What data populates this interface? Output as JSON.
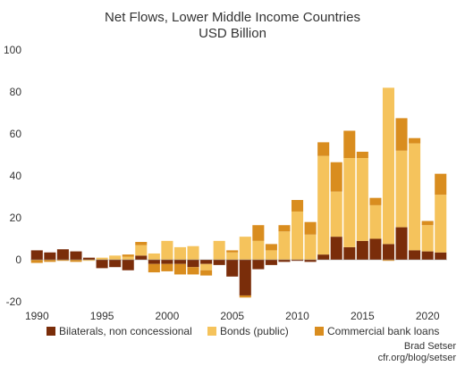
{
  "chart_data": {
    "type": "bar",
    "stacked": true,
    "title": "Net Flows, Lower Middle Income Countries",
    "subtitle": "USD Billion",
    "xlabel": "",
    "ylabel": "",
    "ylim": [
      -20,
      100
    ],
    "yticks": [
      -20,
      0,
      20,
      40,
      60,
      80,
      100
    ],
    "xticks": [
      1990,
      1995,
      2000,
      2005,
      2010,
      2015,
      2020
    ],
    "legend_position": "bottom",
    "grid": false,
    "years": [
      1990,
      1991,
      1992,
      1993,
      1994,
      1995,
      1996,
      1997,
      1998,
      1999,
      2000,
      2001,
      2002,
      2003,
      2004,
      2005,
      2006,
      2007,
      2008,
      2009,
      2010,
      2011,
      2012,
      2013,
      2014,
      2015,
      2016,
      2017,
      2018,
      2019,
      2020,
      2021
    ],
    "series": [
      {
        "name": "Bilaterals, non concessional",
        "color": "#7a2d0a",
        "values": [
          4.5,
          3.5,
          5.0,
          4.0,
          1.0,
          -4.0,
          -3.5,
          -5.0,
          2.0,
          -2.0,
          -2.0,
          -2.0,
          -3.5,
          -2.0,
          -2.5,
          -8.0,
          -17.0,
          -4.5,
          -2.5,
          -1.0,
          -0.5,
          -1.0,
          2.5,
          11.0,
          6.0,
          9.0,
          10.0,
          7.5,
          15.5,
          4.5,
          4.0,
          3.5
        ]
      },
      {
        "name": "Bonds (public)",
        "color": "#f5c35c",
        "values": [
          0,
          0,
          0,
          0,
          -0.5,
          1.0,
          2.0,
          1.5,
          5.0,
          3.0,
          9.0,
          6.0,
          6.5,
          -3.0,
          9.0,
          3.5,
          11.0,
          9.0,
          4.5,
          13.5,
          23.0,
          12.0,
          47.0,
          21.5,
          42.5,
          39.5,
          16.0,
          74.5,
          36.5,
          51.0,
          12.5,
          27.5
        ]
      },
      {
        "name": "Commercial bank loans",
        "color": "#d98d1f",
        "values": [
          -1.5,
          -1.0,
          -0.5,
          -1.0,
          0,
          0,
          0,
          1.0,
          1.5,
          -4.0,
          -3.5,
          -5.0,
          -3.5,
          -2.5,
          0,
          1.0,
          -1.0,
          7.5,
          3.0,
          3.0,
          5.5,
          6.0,
          6.5,
          14.0,
          13.0,
          3.0,
          3.5,
          -0.5,
          15.5,
          2.5,
          2.0,
          10.0
        ]
      }
    ]
  },
  "credit": {
    "author": "Brad Setser",
    "source": "cfr.org/blog/setser"
  }
}
